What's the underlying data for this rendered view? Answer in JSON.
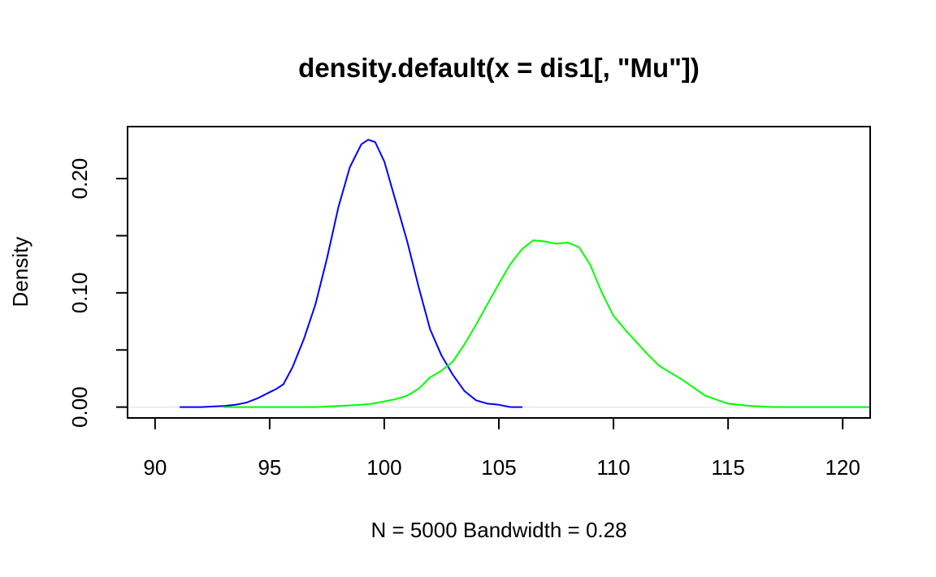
{
  "chart_data": {
    "type": "line",
    "title": "density.default(x = dis1[, \"Mu\"])",
    "xlabel": "N = 5000   Bandwidth = 0.28",
    "ylabel": "Density",
    "xlim": [
      88.8,
      121.2
    ],
    "ylim": [
      -0.0095,
      0.2455
    ],
    "x_ticks": [
      90,
      95,
      100,
      105,
      110,
      115,
      120
    ],
    "x_tick_labels": [
      "90",
      "95",
      "100",
      "105",
      "110",
      "115",
      "120"
    ],
    "y_ticks": [
      0.0,
      0.05,
      0.1,
      0.15,
      0.2
    ],
    "y_tick_labels": [
      "0.00",
      "",
      "0.10",
      "",
      "0.20"
    ],
    "baseline_y": 0,
    "grid": false,
    "legend": "none",
    "series": [
      {
        "color": "#0000ff",
        "x": [
          91.1,
          92.0,
          93.0,
          93.5,
          94.0,
          94.5,
          95.0,
          95.3,
          95.6,
          96.0,
          96.5,
          97.0,
          97.5,
          98.0,
          98.5,
          99.0,
          99.3,
          99.6,
          100.0,
          100.5,
          101.0,
          101.5,
          102.0,
          102.5,
          103.0,
          103.5,
          104.0,
          104.5,
          105.0,
          105.5,
          106.0
        ],
        "y": [
          0.0,
          0.0,
          0.001,
          0.002,
          0.004,
          0.008,
          0.013,
          0.016,
          0.02,
          0.035,
          0.06,
          0.09,
          0.13,
          0.175,
          0.21,
          0.23,
          0.234,
          0.232,
          0.215,
          0.18,
          0.145,
          0.105,
          0.068,
          0.045,
          0.028,
          0.014,
          0.006,
          0.003,
          0.002,
          0.0,
          0.0
        ]
      },
      {
        "color": "#00ff00",
        "x": [
          93.0,
          95.0,
          97.0,
          98.0,
          99.0,
          99.5,
          100.0,
          100.5,
          101.0,
          101.5,
          102.0,
          102.5,
          103.0,
          103.5,
          104.0,
          104.5,
          105.0,
          105.5,
          106.0,
          106.5,
          107.0,
          107.5,
          108.0,
          108.5,
          109.0,
          109.5,
          110.0,
          110.5,
          111.0,
          111.5,
          112.0,
          112.5,
          113.0,
          113.5,
          114.0,
          115.0,
          116.0,
          117.0,
          118.0,
          119.0,
          121.2
        ],
        "y": [
          0.0,
          0.0,
          0.0,
          0.001,
          0.002,
          0.003,
          0.005,
          0.007,
          0.01,
          0.016,
          0.026,
          0.032,
          0.04,
          0.055,
          0.072,
          0.09,
          0.108,
          0.125,
          0.138,
          0.146,
          0.145,
          0.143,
          0.144,
          0.14,
          0.124,
          0.1,
          0.08,
          0.068,
          0.057,
          0.046,
          0.036,
          0.03,
          0.024,
          0.017,
          0.01,
          0.003,
          0.001,
          0.0,
          0.0,
          0.0,
          0.0
        ]
      }
    ]
  }
}
